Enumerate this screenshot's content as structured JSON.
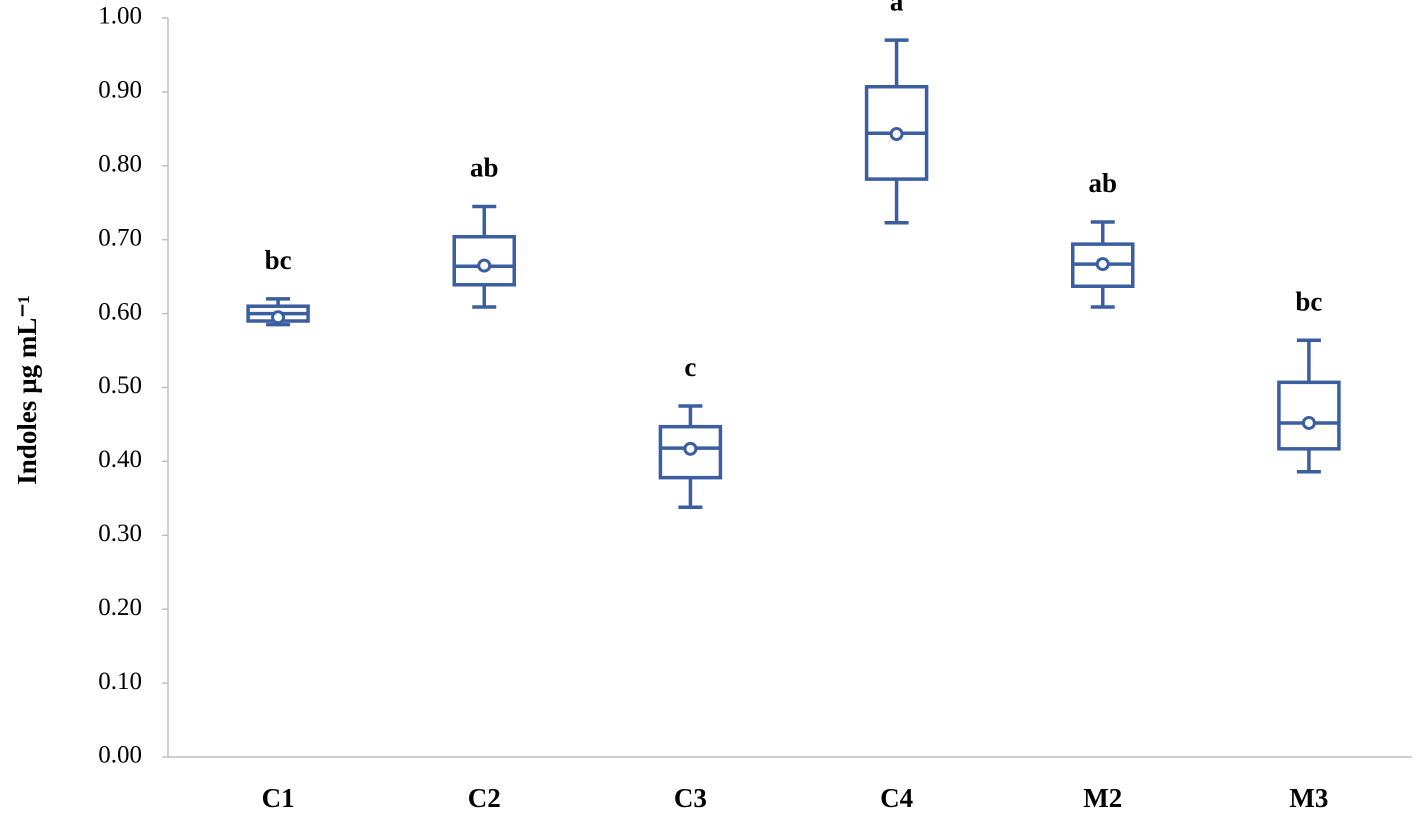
{
  "chart_data": {
    "type": "box",
    "y_label": "Indoles µg mL⁻¹",
    "categories": [
      "C1",
      "C2",
      "C3",
      "C4",
      "M2",
      "M3"
    ],
    "min": [
      0.585,
      0.609,
      0.338,
      0.723,
      0.609,
      0.386
    ],
    "q1": [
      0.59,
      0.639,
      0.378,
      0.782,
      0.637,
      0.417
    ],
    "median": [
      0.6,
      0.664,
      0.418,
      0.844,
      0.667,
      0.452
    ],
    "q3": [
      0.61,
      0.704,
      0.447,
      0.907,
      0.694,
      0.507
    ],
    "max": [
      0.62,
      0.745,
      0.475,
      0.97,
      0.724,
      0.564
    ],
    "mean": [
      0.595,
      0.665,
      0.417,
      0.843,
      0.667,
      0.452
    ],
    "annotations": [
      "bc",
      "ab",
      "c",
      "a",
      "ab",
      "bc"
    ],
    "color": "#3a5ea0",
    "ylim": [
      0,
      1
    ],
    "yticks": [
      {
        "value": 0,
        "label": "0.00"
      },
      {
        "value": 0.1,
        "label": "0.10"
      },
      {
        "value": 0.2,
        "label": "0.20"
      },
      {
        "value": 0.3,
        "label": "0.30"
      },
      {
        "value": 0.4,
        "label": "0.40"
      },
      {
        "value": 0.5,
        "label": "0.50"
      },
      {
        "value": 0.6,
        "label": "0.60"
      },
      {
        "value": 0.7,
        "label": "0.70"
      },
      {
        "value": 0.8,
        "label": "0.80"
      },
      {
        "value": 0.9,
        "label": "0.90"
      },
      {
        "value": 1,
        "label": "1.00"
      }
    ],
    "grid": false
  }
}
